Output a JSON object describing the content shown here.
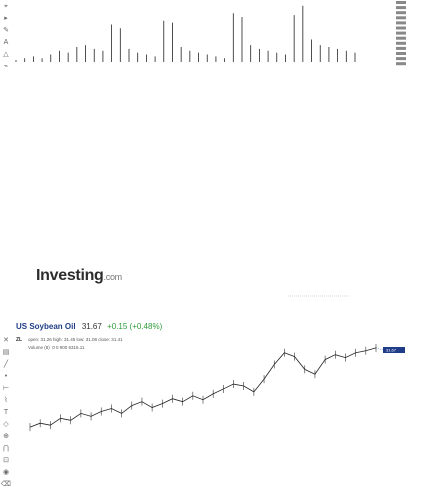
{
  "toolbar_top": {
    "icons": [
      "crosshair-icon",
      "cursor-icon",
      "pencil-icon",
      "text-icon",
      "shape-icon",
      "measure-icon"
    ]
  },
  "toolbar_bottom": {
    "icons": [
      "cross-icon",
      "bars-icon",
      "line-icon",
      "dot-icon",
      "ruler-icon",
      "brush-icon",
      "text-icon",
      "shape-icon",
      "zoom-icon",
      "magnet-icon",
      "lock-icon",
      "eye-icon",
      "trash-icon"
    ]
  },
  "watermark": {
    "brand": "Investing",
    "suffix": ".com"
  },
  "header": {
    "title": "US Soybean Oil",
    "price": "31.67",
    "change": "+0.15 (+0.48%)",
    "symbol": "ZL",
    "ohlc": "open: 31.26   high: 31.45   low: 31.08   close: 31.41",
    "volume_label": "Volume (8)",
    "volume_values": "0  0  900   6315.11"
  },
  "top_axis": {
    "labels": [
      "",
      "",
      "",
      "",
      "",
      "",
      "",
      "",
      "",
      "",
      "",
      "",
      ""
    ]
  },
  "mid_axis": {
    "labels": [
      "",
      "",
      "",
      "",
      ""
    ]
  },
  "bottom_axis": {
    "labels": [
      "",
      "",
      "",
      "",
      "",
      "",
      "",
      ""
    ]
  },
  "current_price_tag": "31.67",
  "chart_data": [
    {
      "type": "line",
      "title": "",
      "x": [
        0,
        1,
        2,
        3,
        4,
        5,
        6,
        7,
        8,
        9,
        10,
        11,
        12,
        13,
        14,
        15,
        16,
        17,
        18,
        19,
        20,
        21,
        22,
        23,
        24,
        25,
        26,
        27,
        28,
        29,
        30,
        31,
        32,
        33,
        34,
        35,
        36,
        37,
        38,
        39
      ],
      "values": [
        1,
        2,
        3,
        2,
        4,
        6,
        5,
        8,
        9,
        7,
        6,
        20,
        18,
        7,
        5,
        4,
        3,
        22,
        21,
        8,
        6,
        5,
        4,
        3,
        2,
        26,
        24,
        9,
        7,
        6,
        5,
        4,
        25,
        30,
        12,
        9,
        8,
        7,
        6,
        5
      ],
      "ylim": [
        0,
        32
      ]
    },
    {
      "type": "line",
      "title": "US Soybean Oil",
      "series": [
        {
          "name": "US Soybean Oil",
          "values": [
            30.86,
            30.9,
            30.88,
            30.95,
            30.93,
            31.0,
            30.97,
            31.02,
            31.05,
            31.0,
            31.08,
            31.12,
            31.06,
            31.1,
            31.15,
            31.12,
            31.18,
            31.14,
            31.2,
            31.25,
            31.3,
            31.28,
            31.22,
            31.35,
            31.5,
            31.62,
            31.58,
            31.45,
            31.4,
            31.55,
            31.6,
            31.57,
            31.62,
            31.64,
            31.67
          ]
        }
      ],
      "ylim": [
        30.8,
        31.75
      ]
    }
  ]
}
